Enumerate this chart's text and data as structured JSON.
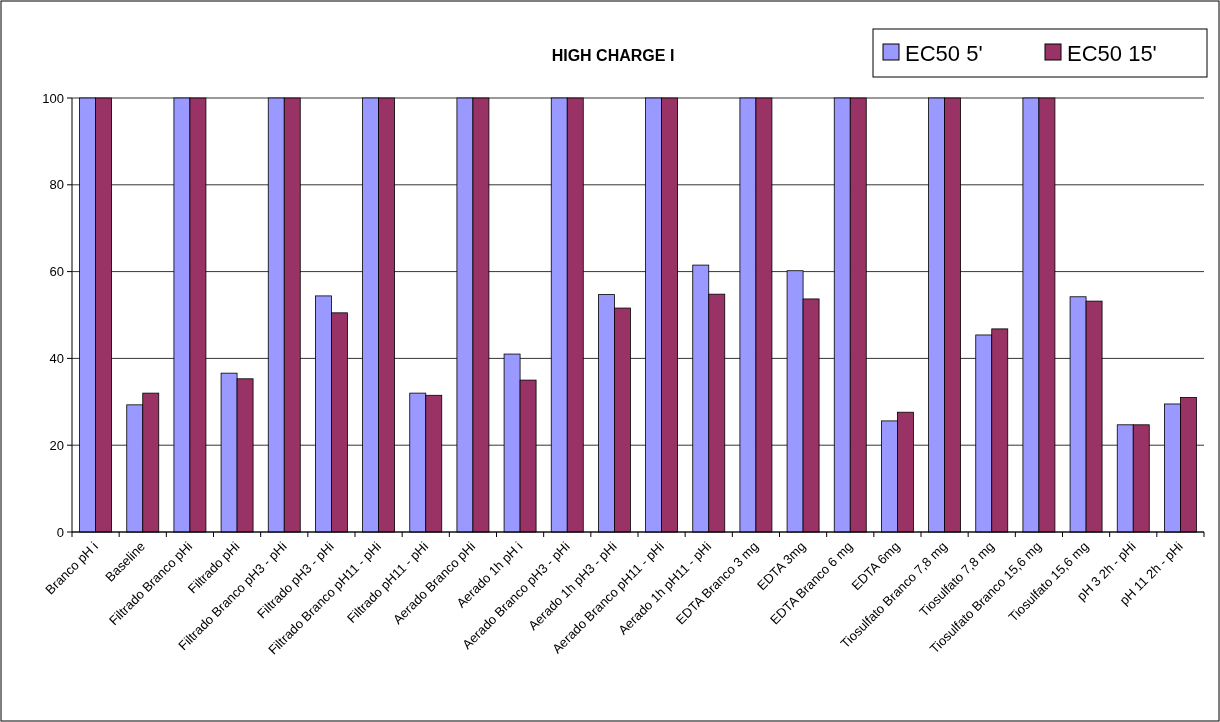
{
  "chart_data": {
    "type": "bar",
    "title": "HIGH CHARGE I",
    "categories": [
      "Branco pH i",
      "Baseline",
      "Filtrado Branco pHi",
      "Filtrado pHi",
      "Filtrado Branco pH3 - pHi",
      "Filtrado pH3 - pHi",
      "Filtrado Branco pH11 - pHi",
      "Filtrado pH11 - pHi",
      "Aerado Branco pHi",
      "Aerado 1h pH i",
      "Aerado Branco pH3 - pHi",
      "Aerado 1h pH3 - pHi",
      "Aerado Branco pH11 - pHi",
      "Aerado 1h pH11 - pHi",
      "EDTA Branco 3 mg",
      "EDTA 3mg",
      "EDTA Branco 6 mg",
      "EDTA 6mg",
      "Tiosulfato Branco 7,8 mg",
      "Tiosulfato 7,8 mg",
      "Tiosulfato Branco 15,6 mg",
      "Tiosulfato 15,6 mg",
      "pH 3 2h - pHi",
      "pH 11 2h - pHi"
    ],
    "series": [
      {
        "name": "EC50 5'",
        "color": "#9999ff",
        "values": [
          100,
          29.3,
          100,
          36.6,
          100,
          54.4,
          100,
          32,
          100,
          41,
          100,
          54.7,
          100,
          61.5,
          100,
          60.2,
          100,
          25.6,
          100,
          45.4,
          100,
          54.2,
          24.7,
          29.5
        ]
      },
      {
        "name": "EC50 15'",
        "color": "#993366",
        "values": [
          100,
          32,
          100,
          35.3,
          100,
          50.5,
          100,
          31.5,
          100,
          35,
          100,
          51.6,
          100,
          54.8,
          100,
          53.7,
          100,
          27.6,
          100,
          46.8,
          100,
          53.2,
          24.7,
          31
        ]
      }
    ],
    "ylim": [
      0,
      100
    ],
    "yticks": [
      0,
      20,
      40,
      60,
      80,
      100
    ],
    "grid": "y",
    "legend": "top right"
  }
}
